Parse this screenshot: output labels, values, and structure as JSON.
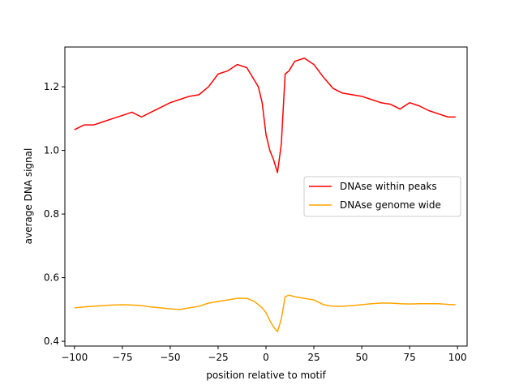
{
  "chart_data": {
    "type": "line",
    "title": "",
    "xlabel": "position relative to motif",
    "ylabel": "average DNA signal",
    "xlim": [
      -105,
      105
    ],
    "ylim": [
      0.385,
      1.325
    ],
    "x_ticks": [
      -100,
      -75,
      -50,
      -25,
      0,
      25,
      50,
      75,
      100
    ],
    "x_tick_labels": [
      "−100",
      "−75",
      "−50",
      "−25",
      "0",
      "25",
      "50",
      "75",
      "100"
    ],
    "y_ticks": [
      0.4,
      0.6,
      0.8,
      1.0,
      1.2
    ],
    "y_tick_labels": [
      "0.4",
      "0.6",
      "0.8",
      "1.0",
      "1.2"
    ],
    "grid": false,
    "legend_position": "center-right",
    "series": [
      {
        "name": "DNAse within peaks",
        "color": "#ff0000",
        "x": [
          -100,
          -95,
          -90,
          -85,
          -80,
          -75,
          -70,
          -65,
          -60,
          -55,
          -50,
          -45,
          -40,
          -35,
          -30,
          -25,
          -20,
          -15,
          -10,
          -8,
          -6,
          -4,
          -2,
          0,
          2,
          4,
          6,
          8,
          10,
          12,
          15,
          20,
          25,
          30,
          35,
          40,
          45,
          50,
          55,
          60,
          65,
          70,
          75,
          80,
          85,
          90,
          95,
          99
        ],
        "y": [
          1.065,
          1.08,
          1.08,
          1.09,
          1.1,
          1.11,
          1.12,
          1.105,
          1.12,
          1.135,
          1.15,
          1.16,
          1.17,
          1.175,
          1.2,
          1.24,
          1.25,
          1.27,
          1.26,
          1.24,
          1.22,
          1.2,
          1.15,
          1.05,
          1.0,
          0.97,
          0.93,
          1.02,
          1.24,
          1.25,
          1.28,
          1.29,
          1.27,
          1.23,
          1.195,
          1.18,
          1.175,
          1.17,
          1.16,
          1.15,
          1.145,
          1.13,
          1.15,
          1.14,
          1.125,
          1.115,
          1.105,
          1.105
        ]
      },
      {
        "name": "DNAse genome wide",
        "color": "#ffa500",
        "x": [
          -100,
          -95,
          -90,
          -85,
          -80,
          -75,
          -70,
          -65,
          -60,
          -55,
          -50,
          -45,
          -40,
          -35,
          -30,
          -25,
          -20,
          -15,
          -10,
          -8,
          -6,
          -4,
          -2,
          0,
          2,
          4,
          6,
          8,
          10,
          12,
          15,
          20,
          25,
          30,
          35,
          40,
          45,
          50,
          55,
          60,
          65,
          70,
          75,
          80,
          85,
          90,
          95,
          99
        ],
        "y": [
          0.505,
          0.508,
          0.51,
          0.512,
          0.514,
          0.515,
          0.514,
          0.512,
          0.508,
          0.505,
          0.502,
          0.5,
          0.505,
          0.51,
          0.52,
          0.525,
          0.53,
          0.535,
          0.535,
          0.53,
          0.525,
          0.515,
          0.505,
          0.49,
          0.465,
          0.445,
          0.43,
          0.47,
          0.54,
          0.545,
          0.54,
          0.535,
          0.53,
          0.515,
          0.51,
          0.51,
          0.512,
          0.515,
          0.518,
          0.52,
          0.52,
          0.518,
          0.517,
          0.518,
          0.518,
          0.518,
          0.516,
          0.515
        ]
      }
    ]
  }
}
